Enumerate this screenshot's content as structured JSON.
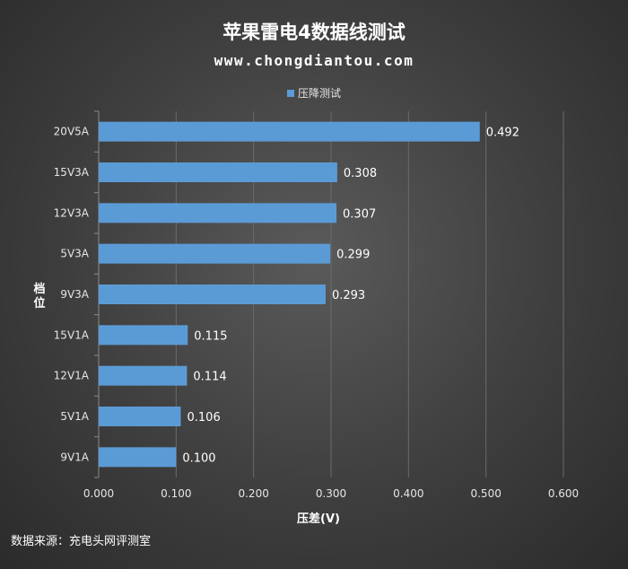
{
  "chart_data": {
    "type": "bar",
    "orientation": "horizontal",
    "title": "苹果雷电4数据线测试",
    "subtitle": "www.chongdiantou.com",
    "categories": [
      "20V5A",
      "15V3A",
      "12V3A",
      "5V3A",
      "9V3A",
      "15V1A",
      "12V1A",
      "5V1A",
      "9V1A"
    ],
    "series": [
      {
        "name": "压降测试",
        "values": [
          0.492,
          0.308,
          0.307,
          0.299,
          0.293,
          0.115,
          0.114,
          0.106,
          0.1
        ]
      }
    ],
    "value_labels": [
      "0.492",
      "0.308",
      "0.307",
      "0.299",
      "0.293",
      "0.115",
      "0.114",
      "0.106",
      "0.100"
    ],
    "x_ticks": [
      "0.000",
      "0.100",
      "0.200",
      "0.300",
      "0.400",
      "0.500",
      "0.600"
    ],
    "xlabel": "压差(V)",
    "ylabel": "档位",
    "xlim": [
      0,
      0.6
    ],
    "grid": true,
    "legend_position": "top",
    "bar_color": "#5b9bd5",
    "source": "数据来源：充电头网评测室"
  }
}
